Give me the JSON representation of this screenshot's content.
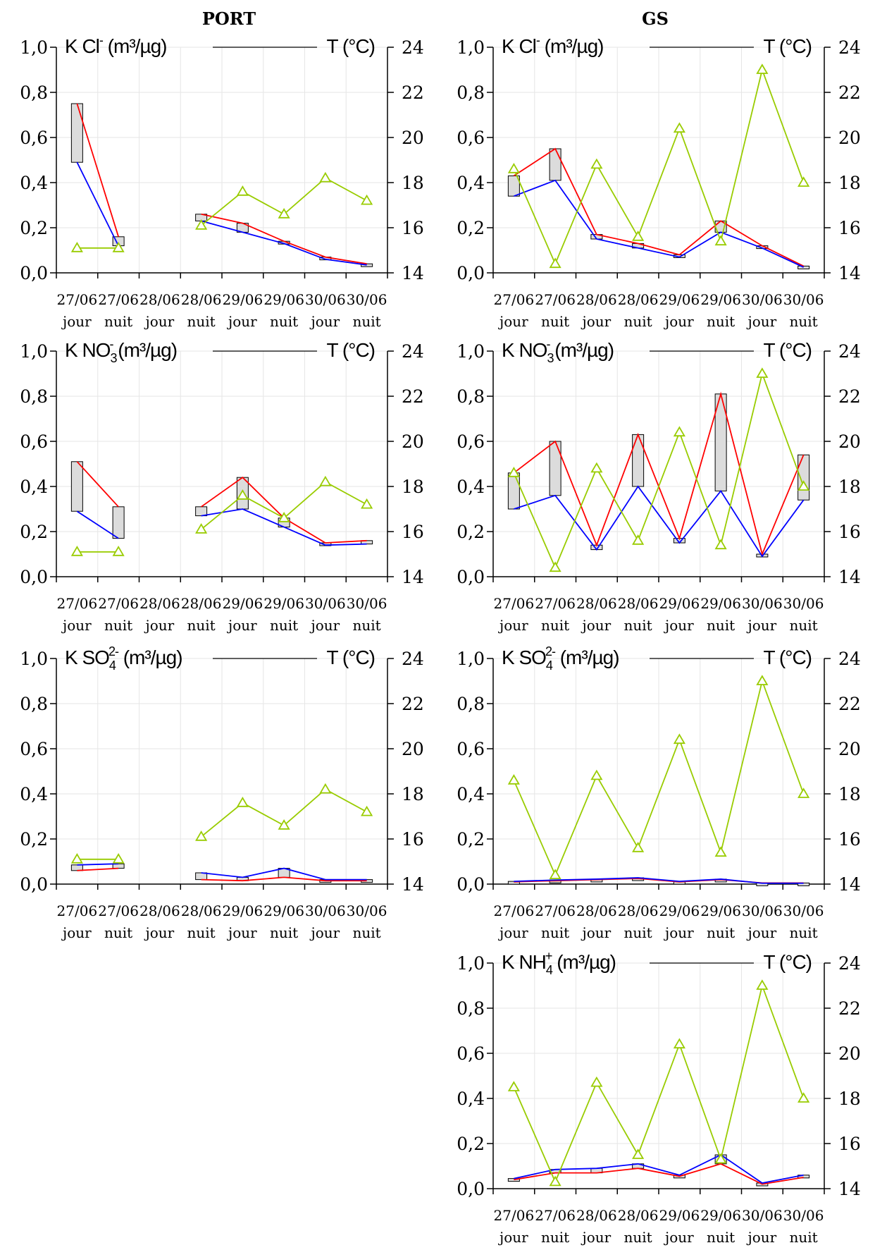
{
  "columns": {
    "left": "PORT",
    "right": "GS"
  },
  "colors": {
    "red": "#ff0000",
    "blue": "#0000ff",
    "temperature": "#99cc00",
    "box_fill": "#dcdcdc",
    "grid": "#e6e6e6"
  },
  "chart_data": [
    {
      "id": "port-cl",
      "type": "line",
      "title_main": "K Cl",
      "title_sup": "-",
      "title_sub": "",
      "title_unit": " (m³/µg)",
      "right_label": "T (°C)",
      "x_dates": [
        "27/06",
        "27/06",
        "28/06",
        "28/06",
        "29/06",
        "29/06",
        "30/06",
        "30/06"
      ],
      "x_periods": [
        "jour",
        "nuit",
        "jour",
        "nuit",
        "jour",
        "nuit",
        "jour",
        "nuit"
      ],
      "y_ticks": [
        "1,0",
        "0,8",
        "0,6",
        "0,4",
        "0,2",
        "0,0"
      ],
      "y2_ticks": [
        "24",
        "22",
        "20",
        "18",
        "16",
        "14"
      ],
      "ylim": [
        0,
        1
      ],
      "y2lim": [
        14,
        24
      ],
      "red": [
        0.75,
        0.16,
        null,
        0.26,
        0.22,
        0.14,
        0.07,
        0.04
      ],
      "blue": [
        0.49,
        0.12,
        null,
        0.23,
        0.18,
        0.13,
        0.06,
        0.035
      ],
      "temperature": [
        15.1,
        15.1,
        null,
        16.1,
        17.6,
        16.6,
        18.2,
        17.2
      ]
    },
    {
      "id": "gs-cl",
      "type": "line",
      "title_main": "K Cl",
      "title_sup": "-",
      "title_sub": "",
      "title_unit": " (m³/µg)",
      "right_label": "T (°C)",
      "x_dates": [
        "27/06",
        "27/06",
        "28/06",
        "28/06",
        "29/06",
        "29/06",
        "30/06",
        "30/06"
      ],
      "x_periods": [
        "jour",
        "nuit",
        "jour",
        "nuit",
        "jour",
        "nuit",
        "jour",
        "nuit"
      ],
      "y_ticks": [
        "1,0",
        "0,8",
        "0,6",
        "0,4",
        "0,2",
        "0,0"
      ],
      "y2_ticks": [
        "24",
        "22",
        "20",
        "18",
        "16",
        "14"
      ],
      "ylim": [
        0,
        1
      ],
      "y2lim": [
        14,
        24
      ],
      "red": [
        0.43,
        0.55,
        0.17,
        0.13,
        0.08,
        0.23,
        0.12,
        0.03
      ],
      "blue": [
        0.34,
        0.41,
        0.15,
        0.11,
        0.07,
        0.18,
        0.11,
        0.025
      ],
      "temperature": [
        18.6,
        14.4,
        18.8,
        15.6,
        20.4,
        15.4,
        23.0,
        18.0
      ]
    },
    {
      "id": "port-no3",
      "type": "line",
      "title_main": "K NO",
      "title_sup": "-",
      "title_sub": "3",
      "title_unit": " (m³/µg)",
      "right_label": "T (°C)",
      "x_dates": [
        "27/06",
        "27/06",
        "28/06",
        "28/06",
        "29/06",
        "29/06",
        "30/06",
        "30/06"
      ],
      "x_periods": [
        "jour",
        "nuit",
        "jour",
        "nuit",
        "jour",
        "nuit",
        "jour",
        "nuit"
      ],
      "y_ticks": [
        "1,0",
        "0,8",
        "0,6",
        "0,4",
        "0,2",
        "0,0"
      ],
      "y2_ticks": [
        "24",
        "22",
        "20",
        "18",
        "16",
        "14"
      ],
      "ylim": [
        0,
        1
      ],
      "y2lim": [
        14,
        24
      ],
      "red": [
        0.51,
        0.31,
        null,
        0.31,
        0.44,
        0.26,
        0.15,
        0.16
      ],
      "blue": [
        0.29,
        0.17,
        null,
        0.27,
        0.3,
        0.22,
        0.14,
        0.145
      ],
      "temperature": [
        15.1,
        15.1,
        null,
        16.1,
        17.6,
        16.6,
        18.2,
        17.2
      ]
    },
    {
      "id": "gs-no3",
      "type": "line",
      "title_main": "K NO",
      "title_sup": "-",
      "title_sub": "3",
      "title_unit": " (m³/µg)",
      "right_label": "T (°C)",
      "x_dates": [
        "27/06",
        "27/06",
        "28/06",
        "28/06",
        "29/06",
        "29/06",
        "30/06",
        "30/06"
      ],
      "x_periods": [
        "jour",
        "nuit",
        "jour",
        "nuit",
        "jour",
        "nuit",
        "jour",
        "nuit"
      ],
      "y_ticks": [
        "1,0",
        "0,8",
        "0,6",
        "0,4",
        "0,2",
        "0,0"
      ],
      "y2_ticks": [
        "24",
        "22",
        "20",
        "18",
        "16",
        "14"
      ],
      "ylim": [
        0,
        1
      ],
      "y2lim": [
        14,
        24
      ],
      "red": [
        0.46,
        0.6,
        0.14,
        0.63,
        0.17,
        0.81,
        0.1,
        0.54
      ],
      "blue": [
        0.3,
        0.36,
        0.12,
        0.4,
        0.15,
        0.38,
        0.09,
        0.34
      ],
      "temperature": [
        18.6,
        14.4,
        18.8,
        15.6,
        20.4,
        15.4,
        23.0,
        18.0
      ]
    },
    {
      "id": "port-so4",
      "type": "line",
      "title_main": "K SO",
      "title_sup": "2-",
      "title_sub": "4",
      "title_unit": " (m³/µg)",
      "right_label": "T (°C)",
      "x_dates": [
        "27/06",
        "27/06",
        "28/06",
        "28/06",
        "29/06",
        "29/06",
        "30/06",
        "30/06"
      ],
      "x_periods": [
        "jour",
        "nuit",
        "jour",
        "nuit",
        "jour",
        "nuit",
        "jour",
        "nuit"
      ],
      "y_ticks": [
        "1,0",
        "0,8",
        "0,6",
        "0,4",
        "0,2",
        "0,0"
      ],
      "y2_ticks": [
        "24",
        "22",
        "20",
        "18",
        "16",
        "14"
      ],
      "ylim": [
        0,
        1
      ],
      "y2lim": [
        14,
        24
      ],
      "red": [
        0.06,
        0.07,
        null,
        0.02,
        0.015,
        0.03,
        0.015,
        0.015
      ],
      "blue": [
        0.085,
        0.09,
        null,
        0.05,
        0.03,
        0.07,
        0.02,
        0.02
      ],
      "temperature": [
        15.1,
        15.1,
        null,
        16.1,
        17.6,
        16.6,
        18.2,
        17.2
      ]
    },
    {
      "id": "gs-so4",
      "type": "line",
      "title_main": "K SO",
      "title_sup": "2-",
      "title_sub": "4",
      "title_unit": " (m³/µg)",
      "right_label": "T (°C)",
      "x_dates": [
        "27/06",
        "27/06",
        "28/06",
        "28/06",
        "29/06",
        "29/06",
        "30/06",
        "30/06"
      ],
      "x_periods": [
        "jour",
        "nuit",
        "jour",
        "nuit",
        "jour",
        "nuit",
        "jour",
        "nuit"
      ],
      "y_ticks": [
        "1,0",
        "0,8",
        "0,6",
        "0,4",
        "0,2",
        "0,0"
      ],
      "y2_ticks": [
        "24",
        "22",
        "20",
        "18",
        "16",
        "14"
      ],
      "ylim": [
        0,
        1
      ],
      "y2lim": [
        14,
        24
      ],
      "red": [
        0.01,
        0.015,
        0.02,
        0.025,
        0.01,
        0.02,
        0.005,
        0.005
      ],
      "blue": [
        0.012,
        0.018,
        0.022,
        0.028,
        0.012,
        0.022,
        0.004,
        0.004
      ],
      "temperature": [
        18.6,
        14.4,
        18.8,
        15.6,
        20.4,
        15.4,
        23.0,
        18.0
      ]
    },
    {
      "id": "gs-nh4",
      "type": "line",
      "title_main": "K NH",
      "title_sup": "+",
      "title_sub": "4",
      "title_unit": " (m³/µg)",
      "right_label": "T (°C)",
      "x_dates": [
        "27/06",
        "27/06",
        "28/06",
        "28/06",
        "29/06",
        "29/06",
        "30/06",
        "30/06"
      ],
      "x_periods": [
        "jour",
        "nuit",
        "jour",
        "nuit",
        "jour",
        "nuit",
        "jour",
        "nuit"
      ],
      "y_ticks": [
        "1,0",
        "0,8",
        "0,6",
        "0,4",
        "0,2",
        "0,0"
      ],
      "y2_ticks": [
        "24",
        "22",
        "20",
        "18",
        "16",
        "14"
      ],
      "ylim": [
        0,
        1
      ],
      "y2lim": [
        14,
        24
      ],
      "red": [
        0.04,
        0.07,
        0.07,
        0.09,
        0.055,
        0.11,
        0.02,
        0.05
      ],
      "blue": [
        0.045,
        0.085,
        0.09,
        0.11,
        0.06,
        0.15,
        0.025,
        0.06
      ],
      "temperature": [
        18.5,
        14.3,
        18.7,
        15.5,
        20.4,
        15.3,
        23.0,
        18.0
      ]
    }
  ]
}
